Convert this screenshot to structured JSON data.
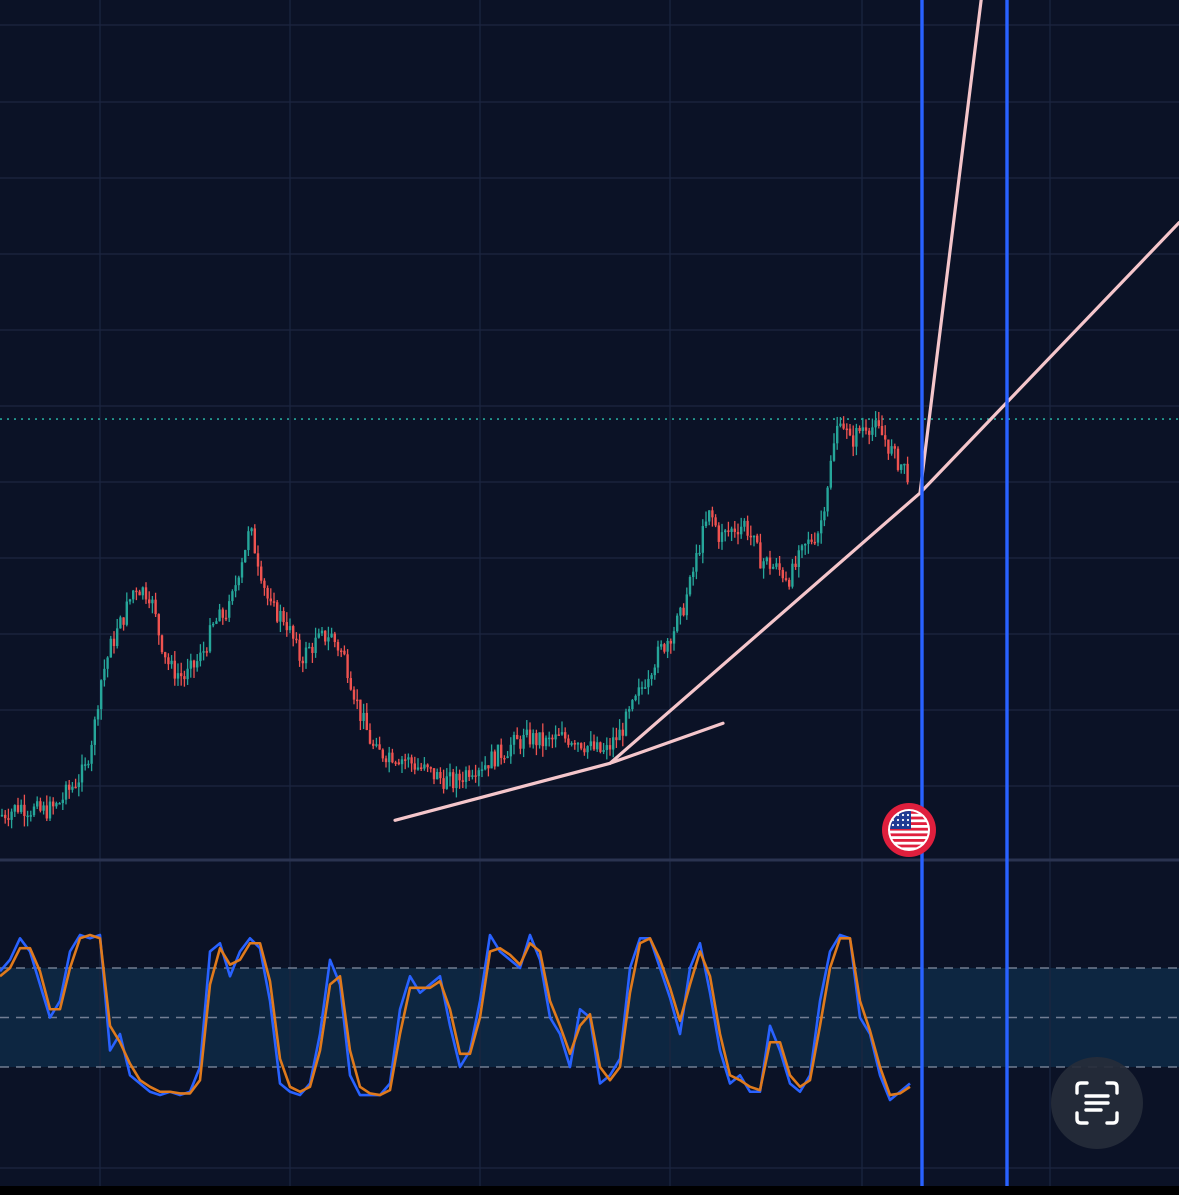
{
  "chart_data": [
    {
      "type": "candlestick",
      "title": "",
      "xlabel": "",
      "ylabel": "",
      "grid": true,
      "ylim": [
        0,
        100
      ],
      "current_price_line": 57,
      "series": [
        {
          "name": "",
          "x": [
            0,
            20,
            40,
            55,
            70,
            85,
            95,
            100,
            110,
            125,
            135,
            150,
            160,
            170,
            185,
            200,
            215,
            230,
            240,
            250,
            260,
            270,
            285,
            300,
            315,
            330,
            345,
            360,
            375,
            390,
            405,
            420,
            440,
            455,
            470,
            485,
            500,
            515,
            530,
            545,
            560,
            575,
            590,
            605,
            620,
            635,
            650,
            665,
            680,
            690,
            700,
            710,
            720,
            735,
            745,
            760,
            775,
            790,
            805,
            820,
            830,
            840,
            850,
            865,
            875,
            885,
            895,
            905,
            910
          ],
          "close": [
            5.5,
            6.8,
            6,
            6.5,
            9,
            11.4,
            17.5,
            22.7,
            27.2,
            31.8,
            35.4,
            34.3,
            28.6,
            24.7,
            23.4,
            25.9,
            30.5,
            32.4,
            38.2,
            42.5,
            37.9,
            32.4,
            31.1,
            25.9,
            27.9,
            29.2,
            25.9,
            18.8,
            13.6,
            13.6,
            12.9,
            11.7,
            10.4,
            9.7,
            11.7,
            12.3,
            13.6,
            14.9,
            15.6,
            14.9,
            15.6,
            15.6,
            14.3,
            13.6,
            16.2,
            20.1,
            24.7,
            27.9,
            31.1,
            35.4,
            40.9,
            44.8,
            41.6,
            42.9,
            43.5,
            38.9,
            37.7,
            36.4,
            40.3,
            42.9,
            50.6,
            57.8,
            53.9,
            56.5,
            55.8,
            54.5,
            51.9,
            50.6,
            49.4
          ]
        },
        {
          "name": "",
          "type": "trendline",
          "points": [
            [
              395,
              4.9
            ],
            [
              610,
              12.3
            ],
            [
              920,
              47.4
            ],
            [
              1179,
              82.5
            ]
          ]
        },
        {
          "name": "",
          "type": "trendline",
          "points": [
            [
              610,
              12.3
            ],
            [
              723,
              17.5
            ]
          ]
        },
        {
          "name": "",
          "type": "trendline",
          "points": [
            [
              920,
              47.4
            ],
            [
              1005,
              136.4
            ]
          ]
        }
      ],
      "vertical_markers_x": [
        922,
        1007
      ],
      "event_marker": {
        "x": 909,
        "icon": "us-flag-icon"
      }
    },
    {
      "type": "line",
      "title": "",
      "xlabel": "",
      "ylabel": "",
      "ylim": [
        0,
        100
      ],
      "band": [
        20,
        80
      ],
      "reference_lines": [
        20,
        50,
        80
      ],
      "series": [
        {
          "name": "",
          "color": "#2962ff",
          "x": [
            0,
            10,
            20,
            30,
            40,
            50,
            60,
            70,
            80,
            90,
            100,
            110,
            120,
            130,
            140,
            150,
            160,
            170,
            180,
            190,
            200,
            210,
            220,
            230,
            240,
            250,
            260,
            270,
            280,
            290,
            300,
            310,
            320,
            330,
            340,
            350,
            360,
            370,
            380,
            390,
            400,
            410,
            420,
            430,
            440,
            450,
            460,
            470,
            480,
            490,
            500,
            510,
            520,
            530,
            540,
            550,
            560,
            570,
            580,
            590,
            600,
            610,
            620,
            630,
            640,
            650,
            660,
            670,
            680,
            690,
            700,
            710,
            720,
            730,
            740,
            750,
            760,
            770,
            780,
            790,
            800,
            810,
            820,
            830,
            840,
            850,
            860,
            870,
            880,
            890,
            900,
            910
          ],
          "values": [
            78,
            85,
            98,
            90,
            70,
            50,
            60,
            90,
            100,
            98,
            100,
            30,
            40,
            15,
            10,
            5,
            3,
            5,
            3,
            5,
            20,
            90,
            95,
            75,
            90,
            98,
            92,
            60,
            10,
            5,
            3,
            10,
            40,
            85,
            70,
            15,
            3,
            3,
            3,
            10,
            55,
            75,
            65,
            70,
            75,
            45,
            20,
            30,
            60,
            100,
            90,
            85,
            80,
            100,
            85,
            50,
            40,
            20,
            55,
            50,
            10,
            15,
            25,
            80,
            98,
            98,
            80,
            62,
            40,
            80,
            95,
            65,
            30,
            10,
            15,
            5,
            5,
            45,
            30,
            10,
            5,
            15,
            60,
            90,
            100,
            98,
            50,
            40,
            15,
            0,
            5,
            10
          ]
        },
        {
          "name": "",
          "color": "#e07a1c",
          "x": [
            0,
            10,
            20,
            30,
            40,
            50,
            60,
            70,
            80,
            90,
            100,
            110,
            120,
            130,
            140,
            150,
            160,
            170,
            180,
            190,
            200,
            210,
            220,
            230,
            240,
            250,
            260,
            270,
            280,
            290,
            300,
            310,
            320,
            330,
            340,
            350,
            360,
            370,
            380,
            390,
            400,
            410,
            420,
            430,
            440,
            450,
            460,
            470,
            480,
            490,
            500,
            510,
            520,
            530,
            540,
            550,
            560,
            570,
            580,
            590,
            600,
            610,
            620,
            630,
            640,
            650,
            660,
            670,
            680,
            690,
            700,
            710,
            720,
            730,
            740,
            750,
            760,
            770,
            780,
            790,
            800,
            810,
            820,
            830,
            840,
            850,
            860,
            870,
            880,
            890,
            900,
            910
          ],
          "values": [
            75,
            80,
            92,
            92,
            78,
            55,
            55,
            80,
            98,
            100,
            98,
            45,
            35,
            22,
            12,
            8,
            5,
            5,
            4,
            4,
            12,
            70,
            92,
            82,
            85,
            95,
            95,
            72,
            25,
            8,
            5,
            8,
            30,
            70,
            75,
            30,
            8,
            4,
            3,
            6,
            40,
            68,
            68,
            68,
            72,
            55,
            28,
            28,
            50,
            90,
            92,
            88,
            82,
            95,
            90,
            60,
            45,
            28,
            45,
            52,
            20,
            12,
            20,
            65,
            95,
            98,
            85,
            68,
            48,
            70,
            90,
            75,
            40,
            15,
            12,
            8,
            6,
            35,
            35,
            15,
            8,
            12,
            45,
            80,
            98,
            98,
            60,
            42,
            20,
            3,
            4,
            8
          ]
        }
      ]
    }
  ],
  "colors": {
    "background": "#0b1226",
    "grid": "#1c2640",
    "candle_up": "#26a69a",
    "candle_down": "#ef5350",
    "trendline": "#f5c6cb",
    "vertical_marker": "#2962ff",
    "price_line": "#26a69a",
    "band_fill": "#0e2a47",
    "event_red": "#e01f3d"
  },
  "icons": {
    "event_marker": "us-flag-icon",
    "scan_button": "scan-text-icon"
  }
}
